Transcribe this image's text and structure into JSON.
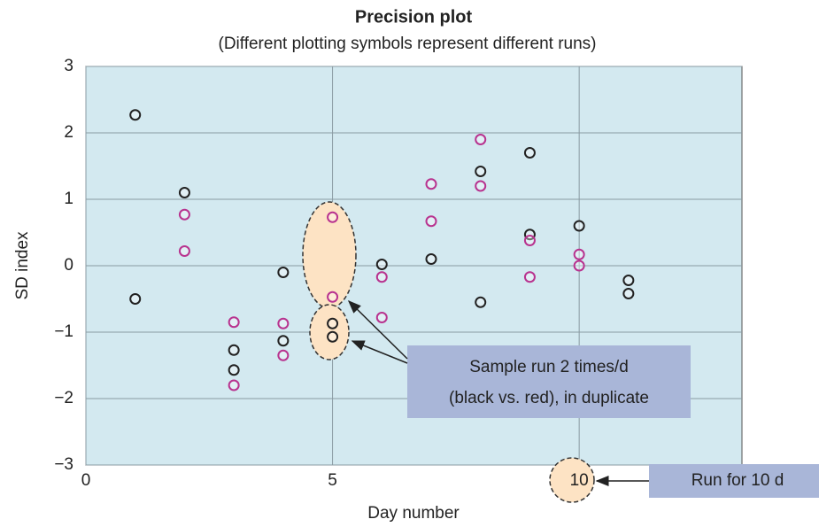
{
  "chart_data": {
    "type": "scatter",
    "title": "Precision plot",
    "subtitle": "(Different plotting symbols represent different runs)",
    "x_label": "Day number",
    "y_label": "SD index",
    "xlim": [
      0,
      13.3
    ],
    "ylim": [
      -3,
      3
    ],
    "xticks": [
      0,
      5,
      10
    ],
    "yticks": [
      {
        "value": -3,
        "label": "−3"
      },
      {
        "value": -2,
        "label": "−2"
      },
      {
        "value": -1,
        "label": "−1"
      },
      0,
      1,
      2,
      3
    ],
    "grid": true,
    "series": [
      {
        "color": "#222222",
        "x": [
          1,
          1,
          2,
          3,
          3,
          4,
          4,
          5,
          5,
          6,
          7,
          8,
          8,
          9,
          9,
          10,
          11,
          11
        ],
        "values": [
          2.27,
          -0.5,
          1.1,
          -1.27,
          -1.57,
          -0.1,
          -1.13,
          -0.87,
          -1.07,
          0.02,
          0.1,
          1.42,
          -0.55,
          1.7,
          0.47,
          0.6,
          -0.22,
          -0.42
        ]
      },
      {
        "color": "#b8338f",
        "x": [
          2,
          2,
          3,
          3,
          4,
          4,
          5,
          5,
          6,
          6,
          7,
          7,
          8,
          8,
          9,
          9,
          10,
          10
        ],
        "values": [
          0.77,
          0.22,
          -0.85,
          -1.8,
          -0.87,
          -1.35,
          0.73,
          -0.47,
          -0.17,
          -0.78,
          1.23,
          0.67,
          1.9,
          1.2,
          0.38,
          -0.17,
          0.17,
          0.0
        ]
      }
    ],
    "annotations": [
      "Sample run 2 times/d",
      "(black vs. red), in duplicate",
      "Run for 10 d"
    ]
  }
}
